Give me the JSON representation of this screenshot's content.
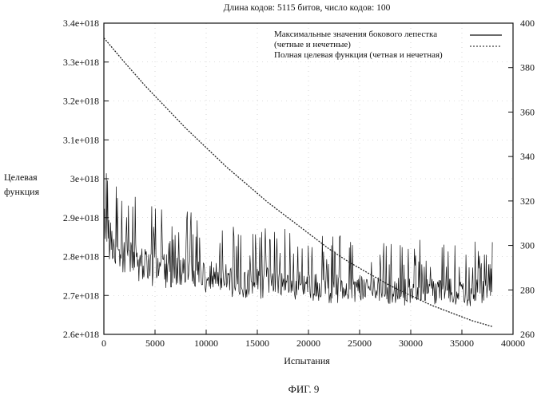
{
  "chart_data": {
    "type": "line",
    "title": "Длина кодов: 5115 битов, число кодов: 100",
    "xlabel": "Испытания",
    "ylabel_left": [
      "Целевая",
      "функция"
    ],
    "ylabel_right": "",
    "xlim": [
      0,
      40000
    ],
    "ylim_left": [
      2.6e+18,
      3.4e+18
    ],
    "ylim_right": [
      260,
      400
    ],
    "x_ticks": [
      "0",
      "5000",
      "10000",
      "15000",
      "20000",
      "25000",
      "30000",
      "35000",
      "40000"
    ],
    "y_ticks_left": [
      "2.6e+018",
      "2.7e+018",
      "2.8e+018",
      "2.9e+018",
      "3e+018",
      "3.1e+018",
      "3.2e+018",
      "3.3e+018",
      "3.4e+018"
    ],
    "y_ticks_right": [
      "260",
      "280",
      "300",
      "320",
      "340",
      "360",
      "380",
      "400"
    ],
    "grid": true,
    "legend_position": "top-right",
    "legend": [
      {
        "lines": [
          "Максимальные значения бокового лепестка",
          "(четные и нечетные)"
        ],
        "style": "solid"
      },
      {
        "lines": [
          "Полная целевая функция (четная и нечетная)"
        ],
        "style": "dashed"
      }
    ],
    "series": [
      {
        "axis": "right",
        "style": "solid",
        "x": [
          0,
          500,
          1000,
          2000,
          3000,
          4000,
          5000,
          6000,
          8000,
          10000,
          12000,
          15000,
          18000,
          20000,
          22000,
          25000,
          28000,
          30000,
          33000,
          35000,
          38000
        ],
        "y_min": [
          298,
          293,
          289,
          286,
          284,
          282,
          281,
          280,
          279,
          278,
          277,
          276,
          275,
          275,
          274,
          274,
          273,
          273,
          273,
          272,
          272
        ],
        "y_max": [
          343,
          339,
          331,
          327,
          324,
          322,
          320,
          318,
          316,
          314,
          312,
          310,
          308,
          306,
          305,
          304,
          303,
          303,
          302,
          302,
          302
        ]
      },
      {
        "axis": "left",
        "style": "dashed",
        "x": [
          0,
          2000,
          4000,
          6000,
          8000,
          10000,
          12000,
          14000,
          16000,
          18000,
          20000,
          22000,
          24000,
          26000,
          28000,
          30000,
          32000,
          34000,
          36000,
          38000
        ],
        "y": [
          3.362e+18,
          3.3e+18,
          3.24e+18,
          3.185e+18,
          3.13e+18,
          3.08e+18,
          3.03e+18,
          2.985e+18,
          2.94e+18,
          2.9e+18,
          2.86e+18,
          2.82e+18,
          2.785e+18,
          2.755e+18,
          2.725e+18,
          2.7e+18,
          2.675e+18,
          2.655e+18,
          2.635e+18,
          2.62e+18
        ]
      }
    ]
  },
  "figure_caption": "ФИГ. 9"
}
